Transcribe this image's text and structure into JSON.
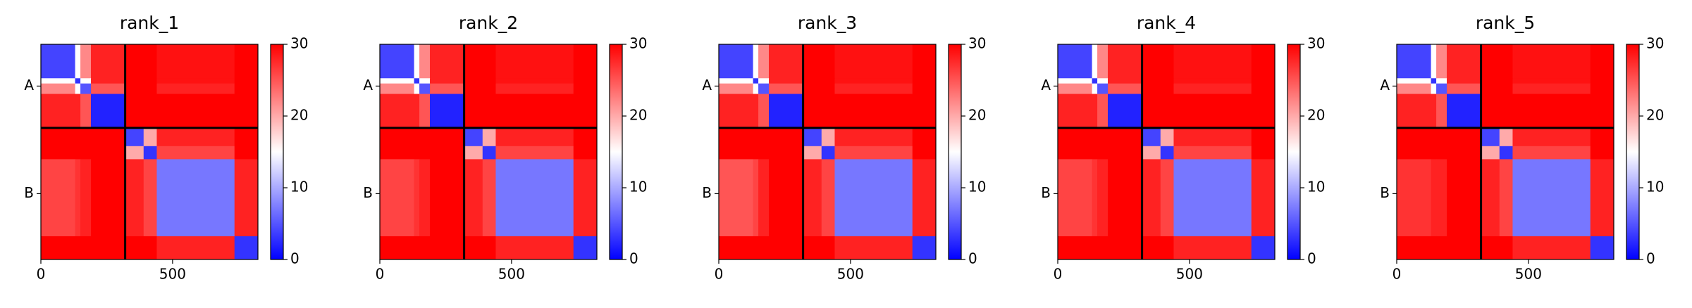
{
  "chart_data": [
    {
      "type": "heatmap",
      "title": "rank_1",
      "bins": [
        0,
        130,
        150,
        190,
        320,
        390,
        440,
        735,
        824
      ],
      "z": [
        [
          4,
          15,
          22,
          28,
          30,
          30,
          29,
          30
        ],
        [
          15,
          3,
          15,
          28,
          30,
          30,
          29,
          30
        ],
        [
          22,
          15,
          5,
          25,
          30,
          30,
          28,
          30
        ],
        [
          28,
          28,
          25,
          2,
          30,
          30,
          30,
          30
        ],
        [
          30,
          30,
          30,
          30,
          4,
          20,
          28,
          30
        ],
        [
          30,
          30,
          30,
          30,
          20,
          3,
          26,
          30
        ],
        [
          26,
          27,
          28,
          30,
          28,
          26,
          7,
          28
        ],
        [
          30,
          30,
          30,
          30,
          30,
          30,
          28,
          3
        ]
      ],
      "xlim": [
        0,
        824
      ],
      "ylim": [
        824,
        0
      ],
      "xticks": [
        0,
        500
      ],
      "yticks": [
        {
          "value": 160,
          "label": "A"
        },
        {
          "value": 572,
          "label": "B"
        }
      ],
      "chain_breaks": [
        320
      ],
      "clim": [
        0,
        30
      ],
      "cticks": [
        0,
        10,
        20,
        30
      ],
      "colormap": [
        "#0000ff",
        "#ffffff",
        "#ff0000"
      ]
    },
    {
      "type": "heatmap",
      "title": "rank_2",
      "bins": [
        0,
        130,
        150,
        190,
        320,
        390,
        440,
        735,
        824
      ],
      "z": [
        [
          4,
          15,
          22,
          28,
          30,
          30,
          29,
          30
        ],
        [
          15,
          3,
          15,
          28,
          30,
          30,
          29,
          30
        ],
        [
          22,
          15,
          5,
          25,
          30,
          30,
          28,
          30
        ],
        [
          28,
          28,
          25,
          2,
          30,
          30,
          30,
          30
        ],
        [
          30,
          30,
          30,
          30,
          4,
          20,
          28,
          30
        ],
        [
          30,
          30,
          30,
          30,
          20,
          3,
          26,
          30
        ],
        [
          26,
          27,
          28,
          30,
          28,
          26,
          7,
          28
        ],
        [
          30,
          30,
          30,
          30,
          30,
          30,
          28,
          3
        ]
      ],
      "xlim": [
        0,
        824
      ],
      "ylim": [
        824,
        0
      ],
      "xticks": [
        0,
        500
      ],
      "yticks": [
        {
          "value": 160,
          "label": "A"
        },
        {
          "value": 572,
          "label": "B"
        }
      ],
      "chain_breaks": [
        320
      ],
      "clim": [
        0,
        30
      ],
      "cticks": [
        0,
        10,
        20,
        30
      ],
      "colormap": [
        "#0000ff",
        "#ffffff",
        "#ff0000"
      ]
    },
    {
      "type": "heatmap",
      "title": "rank_3",
      "bins": [
        0,
        130,
        150,
        190,
        320,
        390,
        440,
        735,
        824
      ],
      "z": [
        [
          4,
          15,
          22,
          28,
          30,
          30,
          29,
          30
        ],
        [
          15,
          3,
          15,
          28,
          30,
          30,
          29,
          30
        ],
        [
          22,
          15,
          5,
          25,
          30,
          30,
          28,
          30
        ],
        [
          28,
          28,
          25,
          2,
          30,
          30,
          30,
          30
        ],
        [
          30,
          30,
          30,
          30,
          4,
          20,
          28,
          30
        ],
        [
          30,
          30,
          30,
          30,
          20,
          3,
          26,
          30
        ],
        [
          25,
          26,
          28,
          30,
          28,
          26,
          7,
          28
        ],
        [
          30,
          30,
          30,
          30,
          30,
          30,
          28,
          3
        ]
      ],
      "xlim": [
        0,
        824
      ],
      "ylim": [
        824,
        0
      ],
      "xticks": [
        0,
        500
      ],
      "yticks": [
        {
          "value": 160,
          "label": "A"
        },
        {
          "value": 572,
          "label": "B"
        }
      ],
      "chain_breaks": [
        320
      ],
      "clim": [
        0,
        30
      ],
      "cticks": [
        0,
        10,
        20,
        30
      ],
      "colormap": [
        "#0000ff",
        "#ffffff",
        "#ff0000"
      ]
    },
    {
      "type": "heatmap",
      "title": "rank_4",
      "bins": [
        0,
        130,
        150,
        190,
        320,
        390,
        440,
        735,
        824
      ],
      "z": [
        [
          4,
          15,
          22,
          28,
          30,
          30,
          29,
          30
        ],
        [
          15,
          3,
          15,
          28,
          30,
          30,
          29,
          30
        ],
        [
          22,
          15,
          5,
          25,
          30,
          30,
          28,
          30
        ],
        [
          28,
          28,
          25,
          2,
          30,
          30,
          30,
          30
        ],
        [
          30,
          30,
          30,
          30,
          4,
          20,
          28,
          30
        ],
        [
          30,
          30,
          30,
          30,
          20,
          3,
          26,
          30
        ],
        [
          26,
          27,
          28,
          30,
          28,
          26,
          7,
          28
        ],
        [
          30,
          30,
          30,
          30,
          30,
          30,
          28,
          3
        ]
      ],
      "xlim": [
        0,
        824
      ],
      "ylim": [
        824,
        0
      ],
      "xticks": [
        0,
        500
      ],
      "yticks": [
        {
          "value": 160,
          "label": "A"
        },
        {
          "value": 572,
          "label": "B"
        }
      ],
      "chain_breaks": [
        320
      ],
      "clim": [
        0,
        30
      ],
      "cticks": [
        0,
        10,
        20,
        30
      ],
      "colormap": [
        "#0000ff",
        "#ffffff",
        "#ff0000"
      ]
    },
    {
      "type": "heatmap",
      "title": "rank_5",
      "bins": [
        0,
        130,
        150,
        190,
        320,
        390,
        440,
        735,
        824
      ],
      "z": [
        [
          4,
          15,
          22,
          28,
          30,
          30,
          29,
          30
        ],
        [
          15,
          3,
          15,
          28,
          30,
          30,
          29,
          30
        ],
        [
          22,
          15,
          5,
          25,
          30,
          30,
          28,
          30
        ],
        [
          28,
          28,
          25,
          2,
          30,
          30,
          30,
          30
        ],
        [
          30,
          30,
          30,
          30,
          4,
          20,
          28,
          30
        ],
        [
          30,
          30,
          30,
          30,
          20,
          3,
          26,
          30
        ],
        [
          27,
          28,
          28,
          30,
          28,
          26,
          7,
          28
        ],
        [
          30,
          30,
          30,
          30,
          30,
          30,
          28,
          3
        ]
      ],
      "xlim": [
        0,
        824
      ],
      "ylim": [
        824,
        0
      ],
      "xticks": [
        0,
        500
      ],
      "yticks": [
        {
          "value": 160,
          "label": "A"
        },
        {
          "value": 572,
          "label": "B"
        }
      ],
      "chain_breaks": [
        320
      ],
      "clim": [
        0,
        30
      ],
      "cticks": [
        0,
        10,
        20,
        30
      ],
      "colormap": [
        "#0000ff",
        "#ffffff",
        "#ff0000"
      ]
    }
  ]
}
